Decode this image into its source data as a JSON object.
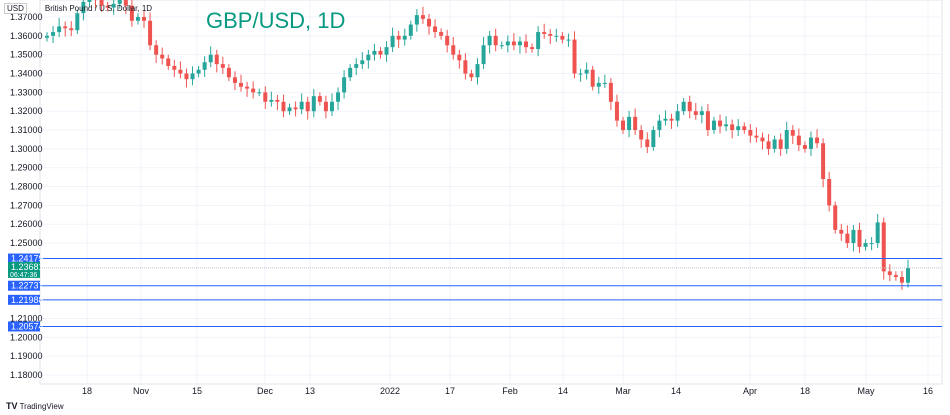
{
  "title": "GBP/USD, 1D",
  "symbol_tag": "USD",
  "symbol_desc": "British Pound / U.S. Dollar, 1D",
  "branding": "TradingView",
  "colors": {
    "up": "#26a69a",
    "down": "#ef5350",
    "level_line": "#2962ff",
    "current_tag": "#089981"
  },
  "chart_data": {
    "type": "candlestick",
    "ylim": [
      1.175,
      1.375
    ],
    "y_ticks": [
      "1.37000",
      "1.36000",
      "1.35000",
      "1.34000",
      "1.33000",
      "1.32000",
      "1.31000",
      "1.30000",
      "1.29000",
      "1.28000",
      "1.27000",
      "1.26000",
      "1.25000",
      "1.21000",
      "1.20000",
      "1.19000",
      "1.18000"
    ],
    "x_ticks": [
      "18",
      "Nov",
      "15",
      "Dec",
      "13",
      "2022",
      "17",
      "Feb",
      "14",
      "Mar",
      "14",
      "Apr",
      "18",
      "May",
      "16"
    ],
    "first_open": 1.359,
    "closes": [
      1.36,
      1.362,
      1.365,
      1.364,
      1.363,
      1.372,
      1.378,
      1.38,
      1.379,
      1.376,
      1.375,
      1.377,
      1.379,
      1.376,
      1.368,
      1.37,
      1.368,
      1.355,
      1.35,
      1.348,
      1.344,
      1.342,
      1.34,
      1.337,
      1.34,
      1.342,
      1.346,
      1.35,
      1.345,
      1.343,
      1.338,
      1.335,
      1.333,
      1.332,
      1.33,
      1.33,
      1.325,
      1.326,
      1.325,
      1.32,
      1.322,
      1.321,
      1.325,
      1.32,
      1.328,
      1.325,
      1.32,
      1.325,
      1.33,
      1.338,
      1.343,
      1.345,
      1.347,
      1.35,
      1.352,
      1.35,
      1.354,
      1.36,
      1.358,
      1.36,
      1.366,
      1.371,
      1.369,
      1.365,
      1.362,
      1.36,
      1.355,
      1.35,
      1.347,
      1.34,
      1.338,
      1.345,
      1.355,
      1.36,
      1.355,
      1.355,
      1.357,
      1.355,
      1.357,
      1.354,
      1.353,
      1.362,
      1.361,
      1.36,
      1.36,
      1.358,
      1.358,
      1.34,
      1.34,
      1.342,
      1.333,
      1.335,
      1.335,
      1.325,
      1.315,
      1.31,
      1.317,
      1.31,
      1.305,
      1.301,
      1.31,
      1.315,
      1.316,
      1.315,
      1.32,
      1.325,
      1.32,
      1.318,
      1.32,
      1.31,
      1.315,
      1.312,
      1.313,
      1.31,
      1.312,
      1.31,
      1.307,
      1.306,
      1.304,
      1.3,
      1.305,
      1.3,
      1.31,
      1.307,
      1.302,
      1.3,
      1.306,
      1.303,
      1.284,
      1.27,
      1.257,
      1.255,
      1.25,
      1.257,
      1.248,
      1.25,
      1.25,
      1.261,
      1.235,
      1.233,
      1.232,
      1.229,
      1.2368
    ],
    "levels": [
      {
        "label": "1.24179",
        "value": 1.24179
      },
      {
        "label": "1.22737",
        "value": 1.22737
      },
      {
        "label": "1.21988",
        "value": 1.21988
      },
      {
        "label": "1.20574",
        "value": 1.20574
      }
    ],
    "current": {
      "label": "1.23681",
      "value": 1.23681,
      "countdown": "06:47:36"
    }
  }
}
